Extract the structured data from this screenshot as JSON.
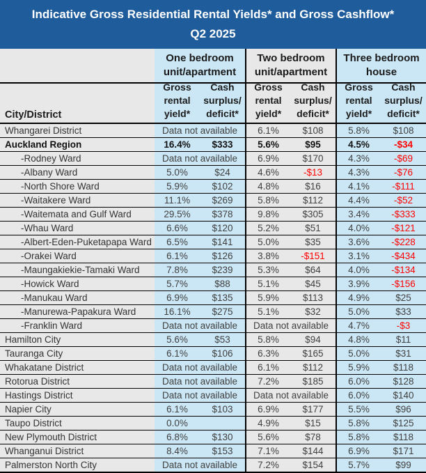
{
  "chart_data": {
    "type": "table",
    "title": "Indicative Gross Residential Rental Yields* and Gross Cashflow*",
    "subtitle": "Q2 2025",
    "city_column_header": "City/District",
    "column_groups": [
      {
        "label": [
          "One bedroom",
          "unit/apartment"
        ]
      },
      {
        "label": [
          "Two bedroom",
          "unit/apartment"
        ]
      },
      {
        "label": [
          "Three bedroom",
          "house"
        ]
      }
    ],
    "sub_columns": {
      "yield": [
        "Gross",
        "rental",
        "yield*"
      ],
      "cash": [
        "Cash",
        "surplus/",
        "deficit*"
      ]
    },
    "na_text": "Data not available",
    "rows": [
      {
        "name": "Whangarei District",
        "indent": false,
        "bold": false,
        "one": "Data not available",
        "two": [
          "6.1%",
          "$108"
        ],
        "three": [
          "5.8%",
          "$108"
        ]
      },
      {
        "name": "Auckland Region",
        "indent": false,
        "bold": true,
        "one": [
          "16.4%",
          "$333"
        ],
        "two": [
          "5.6%",
          "$95"
        ],
        "three": [
          "4.5%",
          "-$34"
        ]
      },
      {
        "name": "-Rodney Ward",
        "indent": true,
        "bold": false,
        "one": "Data not available",
        "two": [
          "6.9%",
          "$170"
        ],
        "three": [
          "4.3%",
          "-$69"
        ]
      },
      {
        "name": "-Albany Ward",
        "indent": true,
        "bold": false,
        "one": [
          "5.0%",
          "$24"
        ],
        "two": [
          "4.6%",
          "-$13"
        ],
        "three": [
          "4.3%",
          "-$76"
        ]
      },
      {
        "name": "-North Shore Ward",
        "indent": true,
        "bold": false,
        "one": [
          "5.9%",
          "$102"
        ],
        "two": [
          "4.8%",
          "$16"
        ],
        "three": [
          "4.1%",
          "-$111"
        ]
      },
      {
        "name": "-Waitakere Ward",
        "indent": true,
        "bold": false,
        "one": [
          "11.1%",
          "$269"
        ],
        "two": [
          "5.8%",
          "$112"
        ],
        "three": [
          "4.4%",
          "-$52"
        ]
      },
      {
        "name": "-Waitemata and Gulf Ward",
        "indent": true,
        "bold": false,
        "one": [
          "29.5%",
          "$378"
        ],
        "two": [
          "9.8%",
          "$305"
        ],
        "three": [
          "3.4%",
          "-$333"
        ]
      },
      {
        "name": "-Whau Ward",
        "indent": true,
        "bold": false,
        "one": [
          "6.6%",
          "$120"
        ],
        "two": [
          "5.2%",
          "$51"
        ],
        "three": [
          "4.0%",
          "-$121"
        ]
      },
      {
        "name": "-Albert-Eden-Puketapapa Ward",
        "indent": true,
        "bold": false,
        "one": [
          "6.5%",
          "$141"
        ],
        "two": [
          "5.0%",
          "$35"
        ],
        "three": [
          "3.6%",
          "-$228"
        ]
      },
      {
        "name": "-Orakei Ward",
        "indent": true,
        "bold": false,
        "one": [
          "6.1%",
          "$126"
        ],
        "two": [
          "3.8%",
          "-$151"
        ],
        "three": [
          "3.1%",
          "-$434"
        ]
      },
      {
        "name": "-Maungakiekie-Tamaki Ward",
        "indent": true,
        "bold": false,
        "one": [
          "7.8%",
          "$239"
        ],
        "two": [
          "5.3%",
          "$64"
        ],
        "three": [
          "4.0%",
          "-$134"
        ]
      },
      {
        "name": "-Howick Ward",
        "indent": true,
        "bold": false,
        "one": [
          "5.7%",
          "$88"
        ],
        "two": [
          "5.1%",
          "$45"
        ],
        "three": [
          "3.9%",
          "-$156"
        ]
      },
      {
        "name": "-Manukau Ward",
        "indent": true,
        "bold": false,
        "one": [
          "6.9%",
          "$135"
        ],
        "two": [
          "5.9%",
          "$113"
        ],
        "three": [
          "4.9%",
          "$25"
        ]
      },
      {
        "name": "-Manurewa-Papakura Ward",
        "indent": true,
        "bold": false,
        "one": [
          "16.1%",
          "$275"
        ],
        "two": [
          "5.1%",
          "$32"
        ],
        "three": [
          "5.0%",
          "$33"
        ]
      },
      {
        "name": "-Franklin Ward",
        "indent": true,
        "bold": false,
        "one": "Data not available",
        "two": "Data not available",
        "three": [
          "4.7%",
          "-$3"
        ]
      },
      {
        "name": "Hamilton City",
        "indent": false,
        "bold": false,
        "one": [
          "5.6%",
          "$53"
        ],
        "two": [
          "5.8%",
          "$94"
        ],
        "three": [
          "4.8%",
          "$11"
        ]
      },
      {
        "name": "Tauranga City",
        "indent": false,
        "bold": false,
        "one": [
          "6.1%",
          "$106"
        ],
        "two": [
          "6.3%",
          "$165"
        ],
        "three": [
          "5.0%",
          "$31"
        ]
      },
      {
        "name": "Whakatane District",
        "indent": false,
        "bold": false,
        "one": "Data not available",
        "two": [
          "6.1%",
          "$112"
        ],
        "three": [
          "5.9%",
          "$118"
        ]
      },
      {
        "name": "Rotorua District",
        "indent": false,
        "bold": false,
        "one": "Data not available",
        "two": [
          "7.2%",
          "$185"
        ],
        "three": [
          "6.0%",
          "$128"
        ]
      },
      {
        "name": "Hastings District",
        "indent": false,
        "bold": false,
        "one": "Data not available",
        "two": "Data not available",
        "three": [
          "6.0%",
          "$140"
        ]
      },
      {
        "name": "Napier City",
        "indent": false,
        "bold": false,
        "one": [
          "6.1%",
          "$103"
        ],
        "two": [
          "6.9%",
          "$177"
        ],
        "three": [
          "5.5%",
          "$96"
        ]
      },
      {
        "name": "Taupo District",
        "indent": false,
        "bold": false,
        "one": [
          "0.0%",
          ""
        ],
        "two": [
          "4.9%",
          "$15"
        ],
        "three": [
          "5.8%",
          "$125"
        ]
      },
      {
        "name": "New Plymouth District",
        "indent": false,
        "bold": false,
        "one": [
          "6.8%",
          "$130"
        ],
        "two": [
          "5.6%",
          "$78"
        ],
        "three": [
          "5.8%",
          "$118"
        ]
      },
      {
        "name": "Whanganui District",
        "indent": false,
        "bold": false,
        "one": [
          "8.4%",
          "$153"
        ],
        "two": [
          "7.1%",
          "$144"
        ],
        "three": [
          "6.9%",
          "$171"
        ]
      },
      {
        "name": "Palmerston North City",
        "indent": false,
        "bold": false,
        "one": "Data not available",
        "two": [
          "7.2%",
          "$154"
        ],
        "three": [
          "5.7%",
          "$99"
        ]
      }
    ]
  },
  "colors": {
    "title_bg": "#1E5C9B",
    "title_text": "#FFFFFF",
    "light_blue": "#CBE7F5",
    "light_gray": "#E8E8E8",
    "negative": "#FF0000",
    "border": "#000000"
  }
}
